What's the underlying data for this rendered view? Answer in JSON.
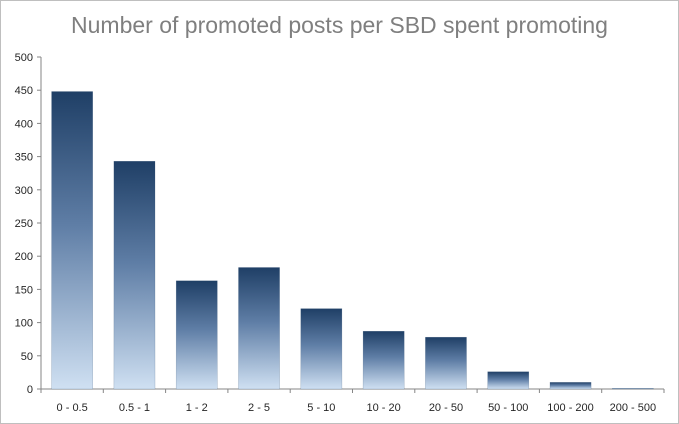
{
  "chart_data": {
    "type": "bar",
    "title": "Number of promoted posts per SBD spent promoting",
    "xlabel": "",
    "ylabel": "",
    "categories": [
      "0 - 0.5",
      "0.5 - 1",
      "1 - 2",
      "2 - 5",
      "5 - 10",
      "10 - 20",
      "20 - 50",
      "50 - 100",
      "100 - 200",
      "200 - 500"
    ],
    "values": [
      448,
      343,
      163,
      183,
      121,
      87,
      78,
      26,
      10,
      1
    ],
    "ylim": [
      0,
      500
    ],
    "yticks": [
      0,
      50,
      100,
      150,
      200,
      250,
      300,
      350,
      400,
      450,
      500
    ],
    "grid": false,
    "legend": "none",
    "colors": {
      "bar_top": "#1f3f66",
      "bar_bottom": "#cfe0f2",
      "axis": "#868686",
      "title": "#7f7f7f"
    }
  }
}
